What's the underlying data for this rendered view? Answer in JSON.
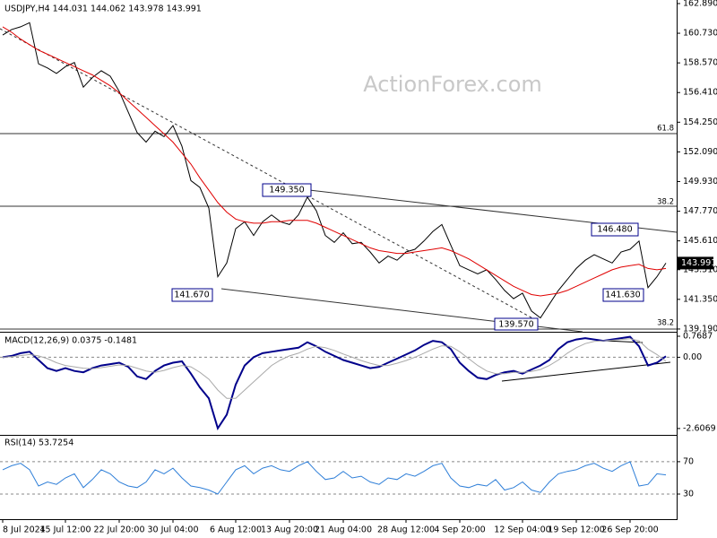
{
  "chart_data": [
    {
      "type": "line",
      "title": "USDJPY,H4  144.031 144.062 143.978 143.991",
      "watermark": "ActionForex.com",
      "series": [
        {
          "color": "#000000",
          "values": [
            160.6,
            161.0,
            161.2,
            161.5,
            158.5,
            158.2,
            157.8,
            158.3,
            158.6,
            156.8,
            157.5,
            158.0,
            157.6,
            156.5,
            155.0,
            153.5,
            152.8,
            153.6,
            153.2,
            154.0,
            152.5,
            150.0,
            149.5,
            148.0,
            143.0,
            144.0,
            146.5,
            147.0,
            146.0,
            147.0,
            147.5,
            147.0,
            146.8,
            147.5,
            148.8,
            147.8,
            146.0,
            145.5,
            146.2,
            145.4,
            145.5,
            144.8,
            144.0,
            144.5,
            144.2,
            144.8,
            145.0,
            145.6,
            146.3,
            146.8,
            145.3,
            143.8,
            143.5,
            143.2,
            143.5,
            142.8,
            142.0,
            141.4,
            141.8,
            140.5,
            140.0,
            141.0,
            142.0,
            142.8,
            143.6,
            144.2,
            144.6,
            144.3,
            144.0,
            144.8,
            145.0,
            145.6,
            142.2,
            143.0,
            143.991
          ]
        },
        {
          "color": "#e00000",
          "values": [
            161.2,
            160.8,
            160.3,
            159.9,
            159.5,
            159.2,
            158.9,
            158.6,
            158.3,
            158.0,
            157.7,
            157.3,
            156.9,
            156.4,
            155.8,
            155.2,
            154.6,
            154.0,
            153.4,
            152.8,
            152.0,
            151.2,
            150.2,
            149.3,
            148.4,
            147.7,
            147.2,
            147.0,
            146.9,
            146.9,
            147.0,
            147.0,
            147.1,
            147.1,
            147.1,
            146.9,
            146.6,
            146.3,
            146.0,
            145.7,
            145.4,
            145.1,
            144.9,
            144.8,
            144.7,
            144.7,
            144.8,
            144.9,
            145.0,
            145.1,
            144.9,
            144.6,
            144.3,
            143.9,
            143.5,
            143.1,
            142.7,
            142.3,
            142.0,
            141.7,
            141.6,
            141.7,
            141.8,
            142.0,
            142.3,
            142.6,
            142.9,
            143.2,
            143.5,
            143.7,
            143.8,
            143.9,
            143.6,
            143.5,
            143.6
          ]
        }
      ],
      "ylim": [
        138.99,
        163.15
      ],
      "yticks": [
        {
          "value": 162.89,
          "label": "162.890"
        },
        {
          "value": 160.73,
          "label": "160.730"
        },
        {
          "value": 158.57,
          "label": "158.570"
        },
        {
          "value": 156.41,
          "label": "156.410"
        },
        {
          "value": 154.25,
          "label": "154.250"
        },
        {
          "value": 152.09,
          "label": "152.090"
        },
        {
          "value": 149.93,
          "label": "149.930"
        },
        {
          "value": 147.77,
          "label": "147.770"
        },
        {
          "value": 145.61,
          "label": "145.610"
        },
        {
          "value": 143.51,
          "label": "143.510"
        },
        {
          "value": 141.35,
          "label": "141.350"
        },
        {
          "value": 139.19,
          "label": "139.190"
        }
      ],
      "annotations": [
        "149.350",
        "146.480",
        "141.670",
        "141.630",
        "139.570",
        "61.8",
        "38.2",
        "38.2"
      ],
      "last_price": 143.991
    },
    {
      "type": "line",
      "title": "MACD(12,26,9) 0.0375 -0.1481",
      "series": [
        {
          "color": "#00008b",
          "values": [
            0.0,
            0.05,
            0.15,
            0.2,
            -0.1,
            -0.4,
            -0.5,
            -0.4,
            -0.5,
            -0.55,
            -0.4,
            -0.3,
            -0.25,
            -0.2,
            -0.35,
            -0.7,
            -0.8,
            -0.5,
            -0.3,
            -0.2,
            -0.15,
            -0.6,
            -1.1,
            -1.5,
            -2.6,
            -2.1,
            -1.0,
            -0.3,
            0.0,
            0.15,
            0.2,
            0.25,
            0.3,
            0.35,
            0.55,
            0.4,
            0.2,
            0.05,
            -0.1,
            -0.2,
            -0.3,
            -0.4,
            -0.35,
            -0.2,
            -0.05,
            0.1,
            0.25,
            0.45,
            0.6,
            0.55,
            0.3,
            -0.2,
            -0.5,
            -0.75,
            -0.8,
            -0.65,
            -0.55,
            -0.5,
            -0.6,
            -0.45,
            -0.3,
            -0.1,
            0.3,
            0.55,
            0.65,
            0.7,
            0.65,
            0.6,
            0.65,
            0.7,
            0.75,
            0.4,
            -0.3,
            -0.2,
            0.0375
          ]
        },
        {
          "color": "#a9a9a9",
          "values": [
            0.0,
            0.02,
            0.06,
            0.1,
            0.05,
            -0.05,
            -0.2,
            -0.3,
            -0.35,
            -0.4,
            -0.42,
            -0.38,
            -0.33,
            -0.28,
            -0.3,
            -0.4,
            -0.5,
            -0.55,
            -0.48,
            -0.38,
            -0.3,
            -0.35,
            -0.55,
            -0.8,
            -1.2,
            -1.5,
            -1.5,
            -1.2,
            -0.9,
            -0.6,
            -0.3,
            -0.1,
            0.05,
            0.15,
            0.3,
            0.4,
            0.35,
            0.25,
            0.12,
            0.0,
            -0.12,
            -0.22,
            -0.3,
            -0.3,
            -0.22,
            -0.12,
            0.0,
            0.15,
            0.3,
            0.42,
            0.4,
            0.2,
            -0.05,
            -0.3,
            -0.5,
            -0.6,
            -0.6,
            -0.55,
            -0.55,
            -0.52,
            -0.45,
            -0.3,
            -0.1,
            0.15,
            0.35,
            0.5,
            0.58,
            0.6,
            0.62,
            0.65,
            0.68,
            0.6,
            0.3,
            0.1,
            -0.1481
          ]
        }
      ],
      "ylim": [
        -2.84,
        0.9
      ],
      "yticks": [
        0.7687,
        {
          "value": 0,
          "label": "0.00"
        },
        -2.6069
      ]
    },
    {
      "type": "line",
      "title": "RSI(14) 53.7254",
      "categories": [
        "8 Jul 2024",
        null,
        null,
        null,
        null,
        null,
        null,
        "15 Jul 12:00",
        null,
        null,
        null,
        null,
        null,
        "22 Jul 20:00",
        null,
        null,
        null,
        null,
        null,
        "30 Jul 04:00",
        null,
        null,
        null,
        null,
        null,
        null,
        "6 Aug 12:00",
        null,
        null,
        null,
        null,
        null,
        "13 Aug 20:00",
        null,
        null,
        null,
        null,
        null,
        "21 Aug 04:00",
        null,
        null,
        null,
        null,
        null,
        null,
        "28 Aug 12:00",
        null,
        null,
        null,
        null,
        null,
        "4 Sep 20:00",
        null,
        null,
        null,
        null,
        null,
        null,
        "12 Sep 04:00",
        null,
        null,
        null,
        null,
        null,
        "19 Sep 12:00",
        null,
        null,
        null,
        null,
        null,
        "26 Sep 20:00",
        null,
        null,
        null,
        null
      ],
      "series": [
        {
          "color": "#2f7fd8",
          "values": [
            60,
            65,
            68,
            60,
            40,
            45,
            42,
            50,
            55,
            38,
            48,
            60,
            55,
            45,
            40,
            38,
            45,
            60,
            55,
            62,
            50,
            40,
            38,
            35,
            30,
            45,
            60,
            65,
            55,
            62,
            65,
            60,
            58,
            65,
            70,
            58,
            48,
            50,
            58,
            50,
            52,
            45,
            42,
            50,
            48,
            55,
            52,
            58,
            65,
            68,
            50,
            40,
            38,
            42,
            40,
            48,
            35,
            38,
            45,
            35,
            32,
            45,
            55,
            58,
            60,
            65,
            68,
            62,
            58,
            65,
            70,
            40,
            42,
            55,
            53.7254
          ]
        }
      ],
      "ylim": [
        -1,
        102
      ],
      "yticks": [
        70,
        30
      ]
    }
  ]
}
